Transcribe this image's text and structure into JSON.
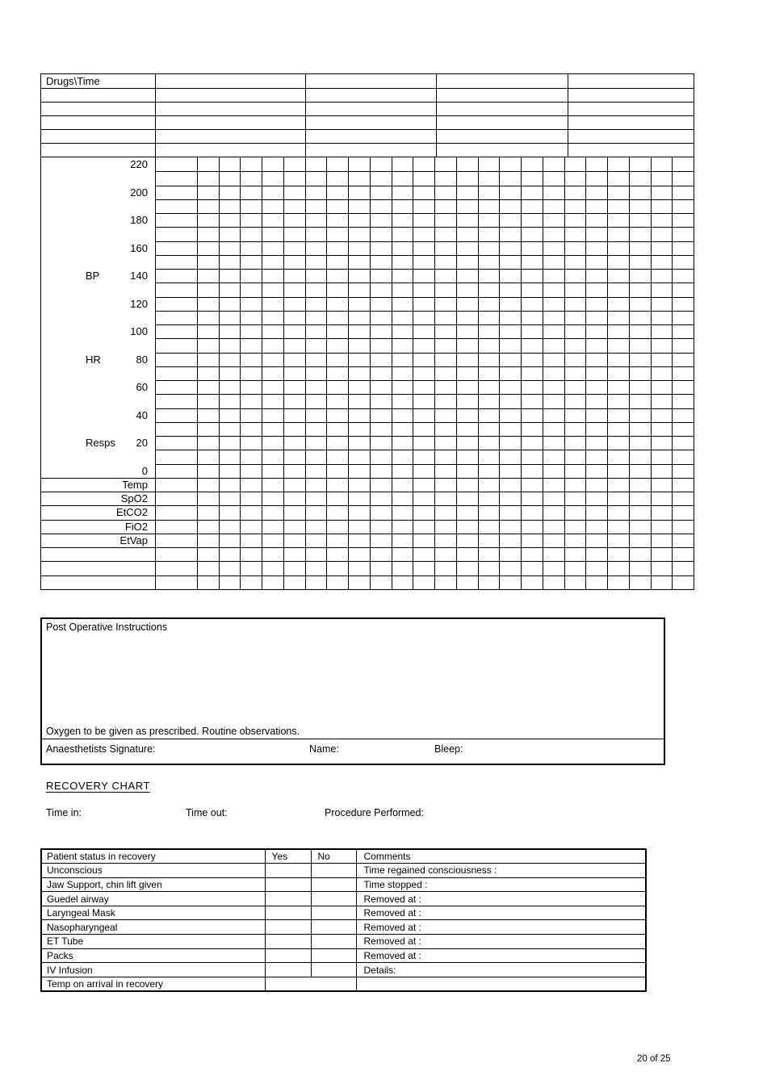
{
  "page": {
    "number_label": "20 of 25"
  },
  "drugs_table": {
    "header": "Drugs\\Time",
    "rows": 6,
    "columns": 5
  },
  "chart": {
    "y_axis_labels": [
      "220",
      "200",
      "180",
      "160",
      "140",
      "120",
      "100",
      "80",
      "60",
      "40",
      "20",
      "0"
    ],
    "side_labels": [
      {
        "label": "BP",
        "row": 8
      },
      {
        "label": "HR",
        "row": 14
      },
      {
        "label": "Resps",
        "row": 20
      }
    ],
    "bottom_row_labels": [
      "Temp",
      "SpO2",
      "EtCO2",
      "FiO2",
      "EtVap",
      "",
      "",
      ""
    ],
    "grid": {
      "columns": 24,
      "chart_rows": 23,
      "bottom_rows": 8,
      "first_col_double_width": true
    }
  },
  "postop": {
    "title": "Post Operative Instructions",
    "note": "Oxygen to be given as prescribed. Routine observations.",
    "signature_label": "Anaesthetists Signature:",
    "name_label": "Name:",
    "bleep_label": "Bleep:"
  },
  "recovery": {
    "heading": "RECOVERY CHART",
    "time_in_label": "Time in:",
    "time_out_label": "Time out:",
    "procedure_label": "Procedure Performed:",
    "table": {
      "headers": [
        "Patient status in recovery",
        "Yes",
        "No",
        "Comments"
      ],
      "rows": [
        {
          "status": "Unconscious",
          "comment": "Time regained consciousness :"
        },
        {
          "status": "Jaw Support, chin lift given",
          "comment": "Time stopped :"
        },
        {
          "status": "Guedel airway",
          "comment": "Removed at :"
        },
        {
          "status": "Laryngeal Mask",
          "comment": "Removed at :"
        },
        {
          "status": "Nasopharyngeal",
          "comment": "Removed at :"
        },
        {
          "status": "ET Tube",
          "comment": "Removed at :"
        },
        {
          "status": "Packs",
          "comment": "Removed at :"
        },
        {
          "status": "IV Infusion",
          "comment": "Details:"
        },
        {
          "status": "Temp on arrival in recovery",
          "comment": "",
          "merged_yes_no": true
        }
      ]
    }
  }
}
